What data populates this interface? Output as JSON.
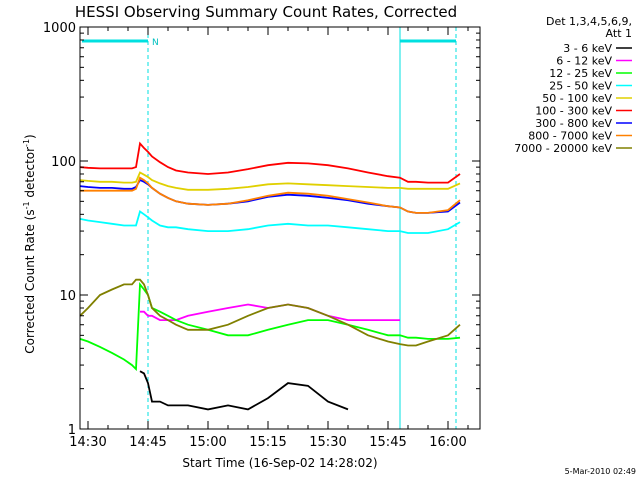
{
  "chart_data": {
    "type": "line",
    "title": "HESSI Observing Summary Count Rates, Corrected",
    "xlabel": "Start Time (16-Sep-02 14:28:02)",
    "ylabel": "Corrected Count Rate (s",
    "ylabel_sup1": "-1",
    "ylabel_mid": " detector",
    "ylabel_sup2": "-1",
    "ylabel_end": ")",
    "yscale": "log",
    "ylim": [
      1,
      1000
    ],
    "x_ticks": [
      "14:30",
      "14:45",
      "15:00",
      "15:15",
      "15:30",
      "15:45",
      "16:00"
    ],
    "y_ticks": [
      "1",
      "10",
      "100",
      "1000"
    ],
    "legend_header": [
      "Det 1,3,4,5,6,9,",
      "Att 1"
    ],
    "legend_position": "right",
    "night_marker": "N",
    "timestamp": "5-Mar-2010 02:49",
    "x_time": [
      "14:28",
      "14:30",
      "14:33",
      "14:36",
      "14:39",
      "14:41",
      "14:42",
      "14:43",
      "14:44",
      "14:45",
      "14:46",
      "14:48",
      "14:50",
      "14:52",
      "14:55",
      "15:00",
      "15:05",
      "15:10",
      "15:15",
      "15:20",
      "15:25",
      "15:30",
      "15:35",
      "15:40",
      "15:45",
      "15:48",
      "15:50",
      "15:52",
      "15:55",
      "16:00",
      "16:03"
    ],
    "series": [
      {
        "name": "3 - 6 keV",
        "color": "#000000",
        "values": [
          null,
          null,
          null,
          null,
          null,
          null,
          null,
          2.7,
          2.6,
          2.2,
          1.6,
          1.6,
          1.5,
          1.5,
          1.5,
          1.4,
          1.5,
          1.4,
          1.7,
          2.2,
          2.1,
          1.6,
          1.4,
          null,
          null,
          null,
          null,
          null,
          null,
          null,
          null
        ]
      },
      {
        "name": "6 - 12 keV",
        "color": "#ff00ff",
        "values": [
          null,
          null,
          null,
          null,
          null,
          null,
          null,
          7.5,
          7.5,
          7,
          7,
          6.5,
          6.5,
          6.5,
          7,
          7.5,
          8,
          8.5,
          8,
          8.5,
          8,
          7,
          6.5,
          6.5,
          6.5,
          6.5,
          null,
          null,
          null,
          null,
          null
        ]
      },
      {
        "name": "12 - 25 keV",
        "color": "#00ff00",
        "values": [
          4.7,
          4.5,
          4.1,
          3.7,
          3.3,
          3.0,
          2.8,
          12,
          11,
          10,
          8,
          7.5,
          7,
          6.5,
          6,
          5.5,
          5,
          5,
          5.5,
          6,
          6.5,
          6.5,
          6,
          5.5,
          5,
          5,
          4.8,
          4.8,
          4.7,
          4.7,
          4.8
        ]
      },
      {
        "name": "25 - 50 keV",
        "color": "#00ffff",
        "values": [
          37,
          36,
          35,
          34,
          33,
          33,
          33,
          42,
          40,
          38,
          36,
          33,
          32,
          32,
          31,
          30,
          30,
          31,
          33,
          34,
          33,
          33,
          32,
          31,
          30,
          30,
          29,
          29,
          29,
          31,
          35
        ]
      },
      {
        "name": "50 - 100 keV",
        "color": "#e0d000",
        "values": [
          72,
          71,
          70,
          70,
          69,
          69,
          70,
          82,
          79,
          76,
          72,
          68,
          65,
          63,
          61,
          61,
          62,
          64,
          67,
          68,
          67,
          66,
          65,
          64,
          63,
          63,
          62,
          62,
          62,
          62,
          68
        ]
      },
      {
        "name": "100 - 300 keV",
        "color": "#ff0000",
        "values": [
          90,
          89,
          88,
          88,
          88,
          88,
          90,
          135,
          125,
          117,
          108,
          98,
          90,
          85,
          82,
          80,
          82,
          87,
          93,
          97,
          96,
          93,
          88,
          82,
          77,
          75,
          70,
          70,
          69,
          69,
          80
        ]
      },
      {
        "name": "300 - 800 keV",
        "color": "#0000ff",
        "values": [
          65,
          64,
          63,
          63,
          62,
          62,
          64,
          72,
          70,
          67,
          63,
          57,
          53,
          50,
          48,
          47,
          48,
          50,
          54,
          56,
          55,
          53,
          51,
          48,
          46,
          45,
          42,
          41,
          41,
          42,
          49
        ]
      },
      {
        "name": "800 - 7000 keV",
        "color": "#ff8000",
        "values": [
          60,
          60,
          60,
          60,
          60,
          60,
          62,
          75,
          72,
          68,
          63,
          57,
          53,
          50,
          48,
          47,
          48,
          51,
          55,
          58,
          57,
          55,
          52,
          49,
          46,
          45,
          42,
          41,
          41,
          43,
          51
        ]
      },
      {
        "name": "7000 - 20000 keV",
        "color": "#808000",
        "values": [
          7,
          8,
          10,
          11,
          12,
          12,
          13,
          13,
          12,
          10,
          8,
          7,
          6.5,
          6,
          5.5,
          5.5,
          6,
          7,
          8,
          8.5,
          8,
          7,
          6,
          5,
          4.5,
          4.3,
          4.2,
          4.2,
          4.5,
          5,
          6
        ]
      }
    ],
    "vertical_markers": [
      "14:45",
      "15:48",
      "16:02"
    ],
    "grid": false
  }
}
